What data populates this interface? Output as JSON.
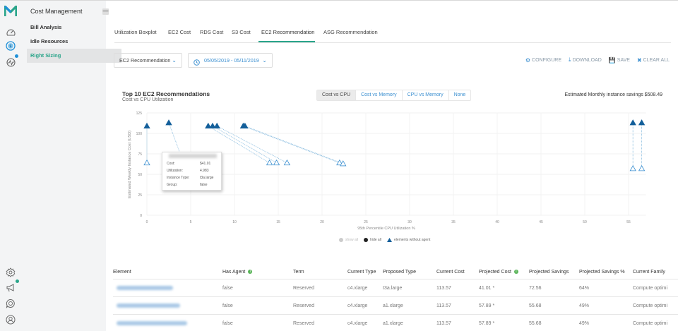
{
  "rail": {
    "logo": "M",
    "top_icons": [
      "dashboard-gauge-icon",
      "cost-dollar-icon",
      "monitoring-pulse-icon"
    ],
    "bottom_icons": [
      "settings-gear-icon",
      "announcements-megaphone-icon",
      "support-chat-icon",
      "user-profile-icon"
    ],
    "brand_color": "#2aa58a",
    "accent_color": "#1f90d8"
  },
  "subnav": {
    "title": "Cost Management",
    "collapse_label": "—",
    "items": [
      {
        "label": "Bill Analysis",
        "active": false
      },
      {
        "label": "Idle Resources",
        "active": false
      },
      {
        "label": "Right Sizing",
        "active": true
      }
    ]
  },
  "tabs": [
    {
      "label": "Utilization Boxplot",
      "active": false
    },
    {
      "label": "EC2 Cost",
      "active": false
    },
    {
      "label": "RDS Cost",
      "active": false
    },
    {
      "label": "S3 Cost",
      "active": false
    },
    {
      "label": "EC2 Recommendation",
      "active": true
    },
    {
      "label": "ASG Recommendation",
      "active": false
    }
  ],
  "filters": {
    "report_select": "EC2 Recommendation",
    "date_range": "05/05/2019 - 05/11/2019"
  },
  "actions": {
    "configure": "CONFIGURE",
    "download": "DOWNLOAD",
    "save": "SAVE",
    "clear_all": "CLEAR ALL"
  },
  "chart": {
    "title": "Top 10 EC2 Recommendations",
    "subtitle": "Cost vs CPU Utilization",
    "view_toggle": [
      {
        "label": "Cost vs CPU",
        "active": true
      },
      {
        "label": "Cost vs Memory",
        "active": false
      },
      {
        "label": "CPU vs Memory",
        "active": false
      },
      {
        "label": "None",
        "active": false
      }
    ],
    "savings_text": "Estimated Monthly instance savings $508.49",
    "tooltip": {
      "rows": [
        {
          "label": "Cost:",
          "value": "$41.01"
        },
        {
          "label": "Utilization:",
          "value": "4.983"
        },
        {
          "label": "Instance Type:",
          "value": "t3a.large"
        },
        {
          "label": "Group:",
          "value": "false"
        }
      ]
    },
    "legend": {
      "show_all": "show all",
      "hide_all": "hide all",
      "without_agent": "elements without agent"
    }
  },
  "chart_data": {
    "type": "scatter",
    "title": "Top 10 EC2 Recommendations",
    "subtitle": "Cost vs CPU Utilization",
    "xlabel": "95th Percentile CPU Utilization %",
    "ylabel": "Estimated Weekly Instance Cost (USD)",
    "xlim": [
      0,
      57
    ],
    "ylim": [
      0,
      125
    ],
    "xticks": [
      0,
      5,
      10,
      15,
      20,
      25,
      30,
      35,
      40,
      45,
      50,
      55
    ],
    "yticks": [
      0,
      25,
      50,
      75,
      100,
      125
    ],
    "grid": true,
    "series": [
      {
        "name": "current (filled triangles)",
        "points": [
          [
            0,
            109
          ],
          [
            2.5,
            113
          ],
          [
            7,
            109
          ],
          [
            7.5,
            109
          ],
          [
            8,
            109
          ],
          [
            11,
            109
          ],
          [
            11.2,
            109
          ],
          [
            55.5,
            113
          ],
          [
            56.5,
            113
          ]
        ]
      },
      {
        "name": "projected (hollow triangles)",
        "points": [
          [
            0,
            64
          ],
          [
            4.98,
            41
          ],
          [
            14,
            64
          ],
          [
            14.8,
            64
          ],
          [
            16,
            64
          ],
          [
            22,
            64
          ],
          [
            22.4,
            63
          ],
          [
            55.5,
            57
          ],
          [
            56.5,
            57
          ]
        ]
      }
    ],
    "legend": [
      "show all",
      "hide all",
      "elements without agent"
    ]
  },
  "table": {
    "headers": [
      "Element",
      "Has Agent",
      "Term",
      "Current Type",
      "Proposed Type",
      "Current Cost",
      "Projected Cost",
      "Projected Savings",
      "Projected Savings %",
      "Current Family"
    ],
    "rows": [
      [
        "",
        "false",
        "Reserved",
        "c4.xlarge",
        "t3a.large",
        "113.57",
        "41.01 *",
        "72.56",
        "64%",
        "Compute optimi"
      ],
      [
        "",
        "false",
        "Reserved",
        "c4.xlarge",
        "a1.xlarge",
        "113.57",
        "57.89 *",
        "55.68",
        "49%",
        "Compute optimi"
      ],
      [
        "",
        "false",
        "Reserved",
        "c4.xlarge",
        "a1.xlarge",
        "113.57",
        "57.89 *",
        "55.68",
        "49%",
        "Compute optimi"
      ]
    ]
  }
}
